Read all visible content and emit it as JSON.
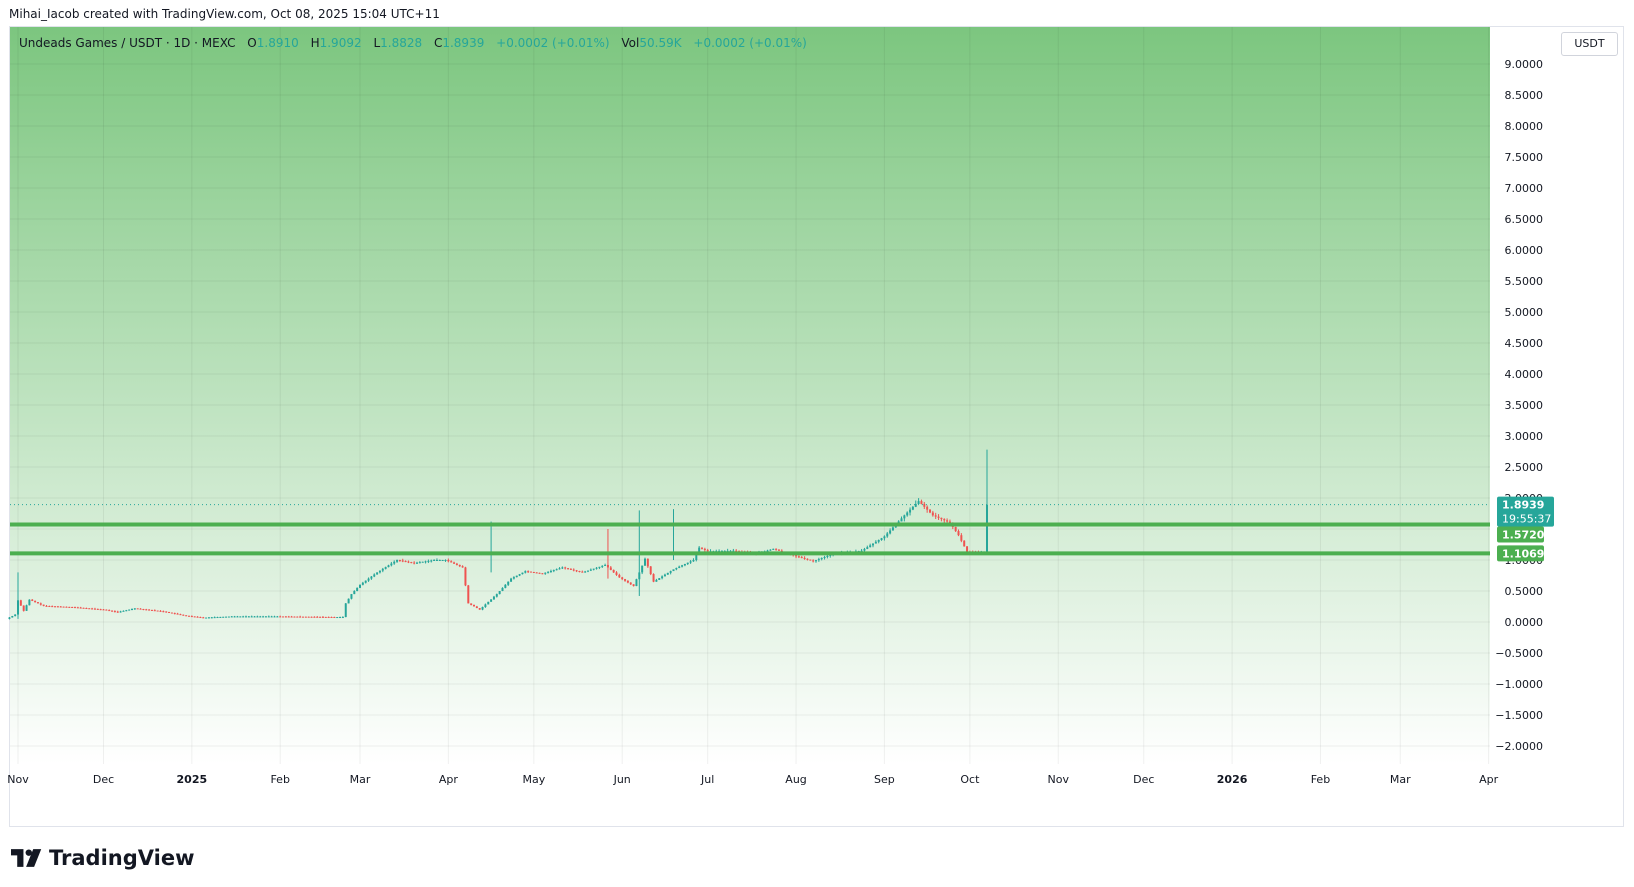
{
  "credit": "Mihai_Iacob created with TradingView.com, Oct 08, 2025 15:04 UTC+11",
  "legend": {
    "symbol": "Undeads Games / USDT · 1D · MEXC",
    "open_label": "O",
    "open": "1.8910",
    "high_label": "H",
    "high": "1.9092",
    "low_label": "L",
    "low": "1.8828",
    "close_label": "C",
    "close": "1.8939",
    "change": "+0.0002 (+0.01%)",
    "vol_label": "Vol",
    "vol": "50.59K",
    "vol_change": "+0.0002 (+0.01%)"
  },
  "currency_button": "USDT",
  "footer_brand": "TradingView",
  "colors": {
    "up": "#26a69a",
    "down": "#ef5350",
    "level_line": "#4caf50",
    "bg_top": "#7cc67f",
    "bg_bottom": "#ffffff",
    "price_badge": "#26a69a",
    "level_badge": "#4caf50"
  },
  "chart_data": {
    "type": "candlestick",
    "y_axis_ticks": [
      "9.0000",
      "8.5000",
      "8.0000",
      "7.5000",
      "7.0000",
      "6.5000",
      "6.0000",
      "5.5000",
      "5.0000",
      "4.5000",
      "4.0000",
      "3.5000",
      "3.0000",
      "2.5000",
      "2.0000",
      "1.5000",
      "1.0000",
      "0.5000",
      "0.0000",
      "−0.5000",
      "−1.0000",
      "−1.5000",
      "−2.0000"
    ],
    "y_axis_values": [
      9,
      8.5,
      8,
      7.5,
      7,
      6.5,
      6,
      5.5,
      5,
      4.5,
      4,
      3.5,
      3,
      2.5,
      2,
      1.5,
      1,
      0.5,
      0,
      -0.5,
      -1,
      -1.5,
      -2
    ],
    "x_axis_labels": [
      {
        "label": "Nov",
        "bold": false
      },
      {
        "label": "Dec",
        "bold": false
      },
      {
        "label": "2025",
        "bold": true
      },
      {
        "label": "Feb",
        "bold": false
      },
      {
        "label": "Mar",
        "bold": false
      },
      {
        "label": "Apr",
        "bold": false
      },
      {
        "label": "May",
        "bold": false
      },
      {
        "label": "Jun",
        "bold": false
      },
      {
        "label": "Jul",
        "bold": false
      },
      {
        "label": "Aug",
        "bold": false
      },
      {
        "label": "Sep",
        "bold": false
      },
      {
        "label": "Oct",
        "bold": false
      },
      {
        "label": "Nov",
        "bold": false
      },
      {
        "label": "Dec",
        "bold": false
      },
      {
        "label": "2026",
        "bold": true
      },
      {
        "label": "Feb",
        "bold": false
      },
      {
        "label": "Mar",
        "bold": false
      },
      {
        "label": "Apr",
        "bold": false
      }
    ],
    "x_axis_dates": [
      "2024-11-01",
      "2024-12-01",
      "2025-01-01",
      "2025-02-01",
      "2025-03-01",
      "2025-04-01",
      "2025-05-01",
      "2025-06-01",
      "2025-07-01",
      "2025-08-01",
      "2025-09-01",
      "2025-10-01",
      "2025-11-01",
      "2025-12-01",
      "2026-01-01",
      "2026-02-01",
      "2026-03-01",
      "2026-04-01"
    ],
    "ylim": [
      -2.4,
      9.3
    ],
    "horizontal_levels": [
      {
        "value": 1.572,
        "label": "1.5720"
      },
      {
        "value": 1.1069,
        "label": "1.1069"
      }
    ],
    "last_price": {
      "value": 1.8939,
      "label": "1.8939",
      "countdown": "19:55:37"
    },
    "price_path": [
      {
        "date": "2024-10-28",
        "price": 0.05
      },
      {
        "date": "2024-10-31",
        "price": 0.12
      },
      {
        "date": "2024-11-01",
        "price": 0.35
      },
      {
        "date": "2024-11-03",
        "price": 0.18
      },
      {
        "date": "2024-11-05",
        "price": 0.36
      },
      {
        "date": "2024-11-10",
        "price": 0.26
      },
      {
        "date": "2024-11-20",
        "price": 0.24
      },
      {
        "date": "2024-12-01",
        "price": 0.2
      },
      {
        "date": "2024-12-06",
        "price": 0.16
      },
      {
        "date": "2024-12-12",
        "price": 0.22
      },
      {
        "date": "2024-12-22",
        "price": 0.17
      },
      {
        "date": "2024-12-30",
        "price": 0.1
      },
      {
        "date": "2025-01-05",
        "price": 0.07
      },
      {
        "date": "2025-01-15",
        "price": 0.09
      },
      {
        "date": "2025-01-31",
        "price": 0.09
      },
      {
        "date": "2025-02-20",
        "price": 0.08
      },
      {
        "date": "2025-02-23",
        "price": 0.08
      },
      {
        "date": "2025-02-24",
        "price": 0.3
      },
      {
        "date": "2025-02-26",
        "price": 0.45
      },
      {
        "date": "2025-03-01",
        "price": 0.6
      },
      {
        "date": "2025-03-07",
        "price": 0.8
      },
      {
        "date": "2025-03-14",
        "price": 1.0
      },
      {
        "date": "2025-03-20",
        "price": 0.95
      },
      {
        "date": "2025-03-27",
        "price": 1.0
      },
      {
        "date": "2025-03-31",
        "price": 1.0
      },
      {
        "date": "2025-04-06",
        "price": 0.88
      },
      {
        "date": "2025-04-08",
        "price": 0.3
      },
      {
        "date": "2025-04-12",
        "price": 0.2
      },
      {
        "date": "2025-04-18",
        "price": 0.45
      },
      {
        "date": "2025-04-23",
        "price": 0.7
      },
      {
        "date": "2025-04-28",
        "price": 0.82
      },
      {
        "date": "2025-05-04",
        "price": 0.78
      },
      {
        "date": "2025-05-11",
        "price": 0.88
      },
      {
        "date": "2025-05-18",
        "price": 0.8
      },
      {
        "date": "2025-05-26",
        "price": 0.92
      },
      {
        "date": "2025-05-31",
        "price": 0.72
      },
      {
        "date": "2025-06-05",
        "price": 0.58
      },
      {
        "date": "2025-06-09",
        "price": 1.02
      },
      {
        "date": "2025-06-12",
        "price": 0.65
      },
      {
        "date": "2025-06-19",
        "price": 0.85
      },
      {
        "date": "2025-06-26",
        "price": 1.0
      },
      {
        "date": "2025-06-28",
        "price": 1.2
      },
      {
        "date": "2025-07-01",
        "price": 1.14
      },
      {
        "date": "2025-07-10",
        "price": 1.15
      },
      {
        "date": "2025-07-18",
        "price": 1.1
      },
      {
        "date": "2025-07-24",
        "price": 1.18
      },
      {
        "date": "2025-08-01",
        "price": 1.06
      },
      {
        "date": "2025-08-07",
        "price": 0.98
      },
      {
        "date": "2025-08-14",
        "price": 1.1
      },
      {
        "date": "2025-08-24",
        "price": 1.15
      },
      {
        "date": "2025-09-01",
        "price": 1.38
      },
      {
        "date": "2025-09-08",
        "price": 1.72
      },
      {
        "date": "2025-09-13",
        "price": 1.95
      },
      {
        "date": "2025-09-18",
        "price": 1.72
      },
      {
        "date": "2025-09-24",
        "price": 1.6
      },
      {
        "date": "2025-09-27",
        "price": 1.4
      },
      {
        "date": "2025-09-30",
        "price": 1.13
      },
      {
        "date": "2025-10-04",
        "price": 1.12
      },
      {
        "date": "2025-10-06",
        "price": 1.12
      },
      {
        "date": "2025-10-07",
        "price": 1.89
      }
    ],
    "notable_candles": [
      {
        "date": "2024-11-01",
        "high": 0.8,
        "low": 0.05
      },
      {
        "date": "2025-04-16",
        "high": 1.62,
        "low": 0.8
      },
      {
        "date": "2025-05-27",
        "high": 1.5,
        "low": 0.7
      },
      {
        "date": "2025-06-07",
        "high": 1.8,
        "low": 0.42
      },
      {
        "date": "2025-06-19",
        "high": 1.82,
        "low": 1.0
      },
      {
        "date": "2025-10-07",
        "high": 2.78,
        "low": 1.12
      }
    ]
  }
}
